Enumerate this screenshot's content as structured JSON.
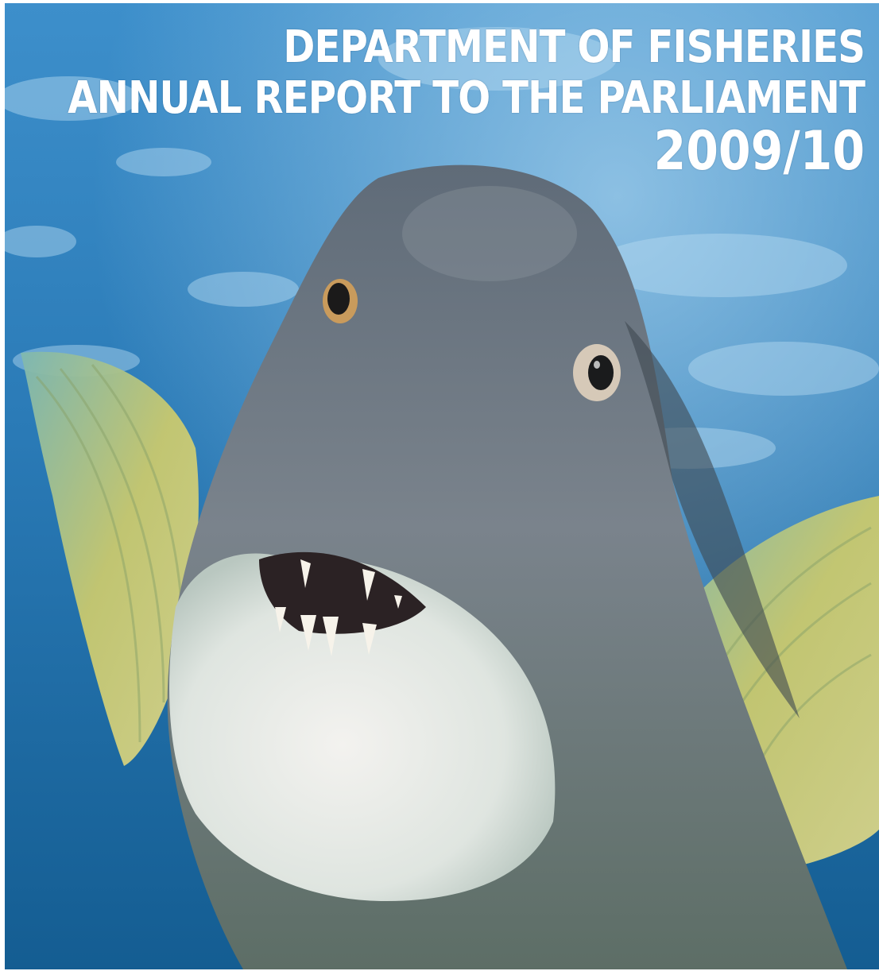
{
  "cover": {
    "title_line1": "DEPARTMENT OF FISHERIES",
    "title_line2": "ANNUAL REPORT TO THE PARLIAMENT",
    "year": "2009/10",
    "image_subject": "fish-photo",
    "colors": {
      "water_light": "#5fa9d8",
      "water_dark": "#0f4f82",
      "fish_body": "#6f7a86",
      "fish_belly": "#e6ece8",
      "fin_yellow": "#c8c86a",
      "title_text": "#ffffff"
    }
  }
}
